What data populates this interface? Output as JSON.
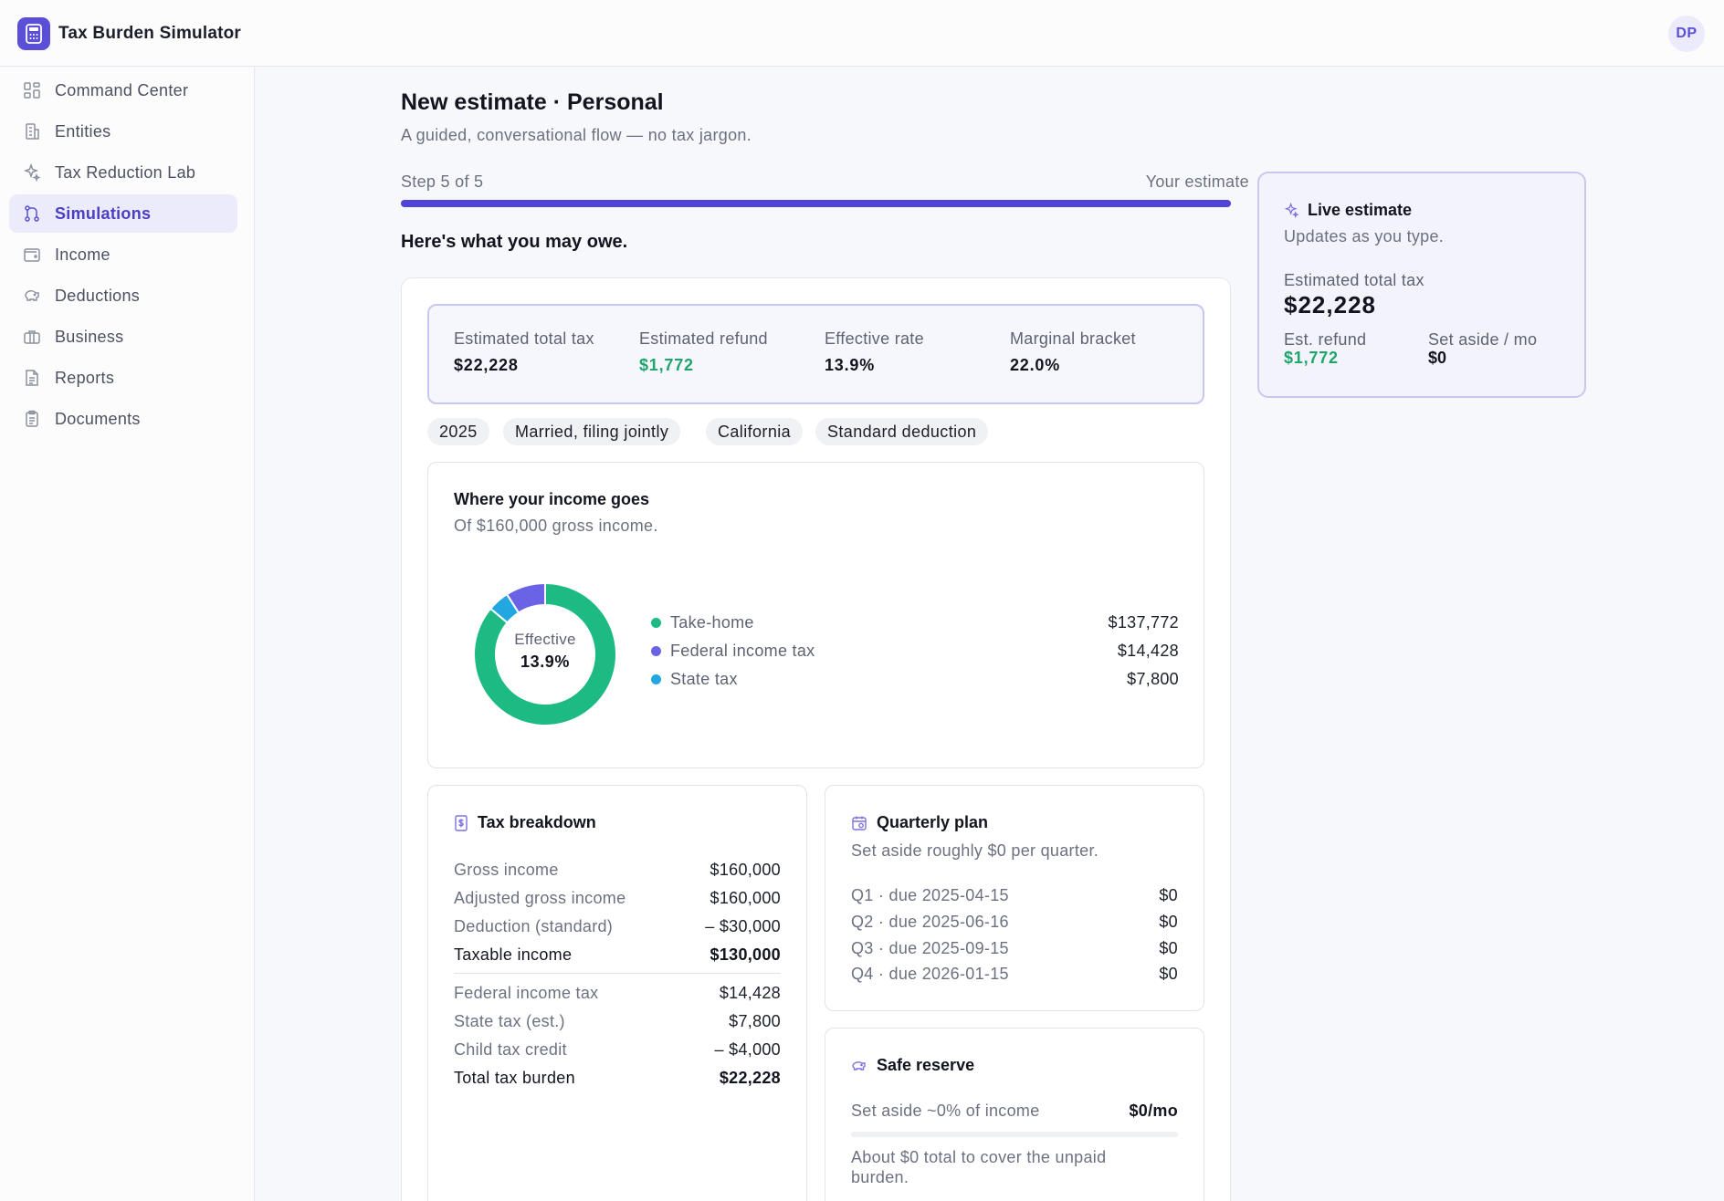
{
  "app": {
    "title": "Tax Burden Simulator",
    "avatar_initials": "DP",
    "accent": "#5a4fd6"
  },
  "sidebar": {
    "items": [
      {
        "label": "Command Center",
        "icon": "grid-icon"
      },
      {
        "label": "Entities",
        "icon": "building-icon"
      },
      {
        "label": "Tax Reduction Lab",
        "icon": "sparkle-icon"
      },
      {
        "label": "Simulations",
        "icon": "branch-icon",
        "active": true
      },
      {
        "label": "Income",
        "icon": "wallet-icon"
      },
      {
        "label": "Deductions",
        "icon": "piggy-bank-icon"
      },
      {
        "label": "Business",
        "icon": "briefcase-icon"
      },
      {
        "label": "Reports",
        "icon": "document-icon"
      },
      {
        "label": "Documents",
        "icon": "clipboard-icon"
      }
    ]
  },
  "header": {
    "title": "New estimate · Personal",
    "subtitle": "A guided, conversational flow — no tax jargon."
  },
  "progress": {
    "step_text": "Step 5 of 5",
    "right_text": "Your estimate",
    "fraction": 1.0
  },
  "question": "Here's what you may owe.",
  "summary": {
    "total_tax_label": "Estimated total tax",
    "total_tax": "$22,228",
    "refund_label": "Estimated refund",
    "refund": "$1,772",
    "rate_label": "Effective rate",
    "rate": "13.9%",
    "bracket_label": "Marginal bracket",
    "bracket": "22.0%"
  },
  "chips": [
    "2025",
    "Married, filing jointly",
    "California",
    "Standard deduction"
  ],
  "income_card": {
    "title": "Where your income goes",
    "subtitle": "Of $160,000 gross income.",
    "center_label": "Effective",
    "center_value": "13.9%",
    "legend": [
      {
        "name": "Take-home",
        "value": "$137,772",
        "amount": 137772,
        "color": "#1dbb83"
      },
      {
        "name": "Federal income tax",
        "value": "$14,428",
        "amount": 14428,
        "color": "#6a63e6"
      },
      {
        "name": "State tax",
        "value": "$7,800",
        "amount": 7800,
        "color": "#22a7e0"
      }
    ]
  },
  "breakdown": {
    "title": "Tax breakdown",
    "rows": [
      {
        "label": "Gross income",
        "value": "$160,000"
      },
      {
        "label": "Adjusted gross income",
        "value": "$160,000"
      },
      {
        "label": "Deduction (standard)",
        "value": "– $30,000"
      },
      {
        "label": "Taxable income",
        "value": "$130,000"
      },
      {
        "label": "Federal income tax",
        "value": "$14,428"
      },
      {
        "label": "State tax (est.)",
        "value": "$7,800"
      },
      {
        "label": "Child tax credit",
        "value": "– $4,000"
      },
      {
        "label": "Total tax burden",
        "value": "$22,228"
      }
    ]
  },
  "quarterly": {
    "title": "Quarterly plan",
    "subtitle": "Set aside roughly $0 per quarter.",
    "rows": [
      {
        "label": "Q1 · due 2025-04-15",
        "value": "$0"
      },
      {
        "label": "Q2 · due 2025-06-16",
        "value": "$0"
      },
      {
        "label": "Q3 · due 2025-09-15",
        "value": "$0"
      },
      {
        "label": "Q4 · due 2026-01-15",
        "value": "$0"
      }
    ]
  },
  "reserve": {
    "title": "Safe reserve",
    "label": "Set aside ~0% of income",
    "value": "$0/mo",
    "fraction": 0.0,
    "note": "About $0 total to cover the unpaid burden."
  },
  "live": {
    "title": "Live estimate",
    "subtitle": "Updates as you type.",
    "total_label": "Estimated total tax",
    "total": "$22,228",
    "refund_label": "Est. refund",
    "refund": "$1,772",
    "aside_label": "Set aside / mo",
    "aside": "$0"
  }
}
